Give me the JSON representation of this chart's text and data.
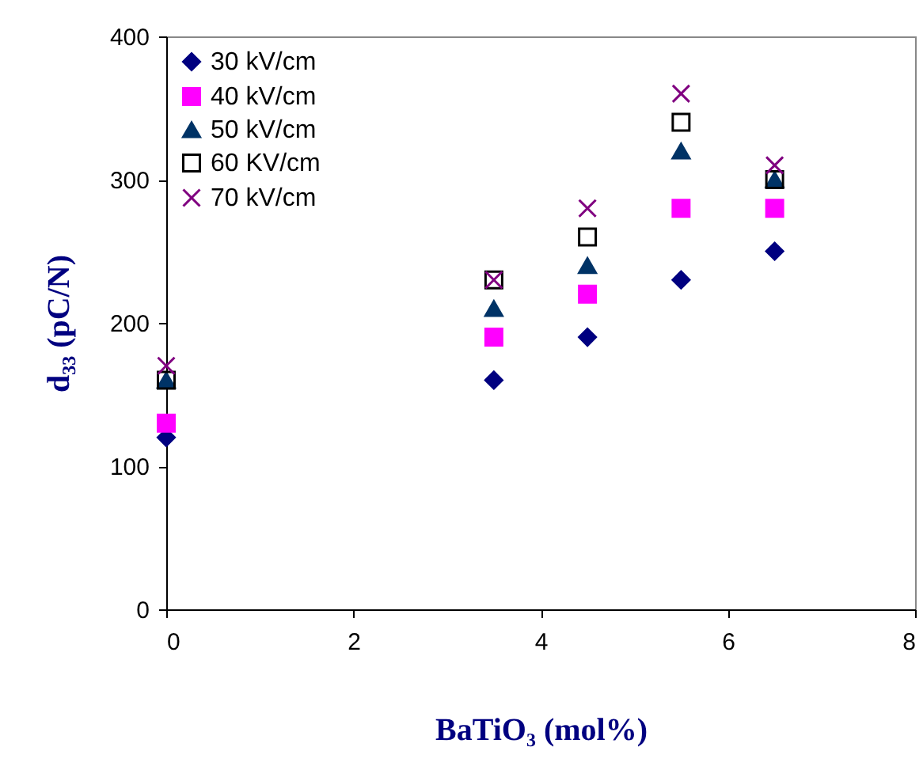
{
  "chart_data": {
    "type": "scatter",
    "xlabel": "BaTiO₃ (mol%)",
    "ylabel": "d₃₃ (pC/N)",
    "x": [
      0,
      3.5,
      4.5,
      5.5,
      6.5
    ],
    "series": [
      {
        "name": "30 kV/cm",
        "color": "#000080",
        "marker": "diamond",
        "values": [
          120,
          160,
          190,
          230,
          250
        ]
      },
      {
        "name": "40 kV/cm",
        "color": "#ff00ff",
        "marker": "square",
        "values": [
          130,
          190,
          220,
          280,
          280
        ]
      },
      {
        "name": "50 kV/cm",
        "color": "#003366",
        "marker": "triangle",
        "values": [
          160,
          210,
          240,
          320,
          300
        ]
      },
      {
        "name": "60 KV/cm",
        "color": "#000000",
        "marker": "square",
        "values": [
          160,
          230,
          260,
          340,
          300
        ]
      },
      {
        "name": "70 kV/cm",
        "color": "#800080",
        "marker": "cross",
        "values": [
          170,
          230,
          280,
          360,
          310
        ]
      }
    ],
    "xlim": [
      0,
      8
    ],
    "xticks": [
      0,
      2,
      4,
      6,
      8
    ],
    "ylim": [
      0,
      400
    ],
    "yticks": [
      0,
      100,
      200,
      300,
      400
    ],
    "grid": false,
    "legend": "top left"
  }
}
